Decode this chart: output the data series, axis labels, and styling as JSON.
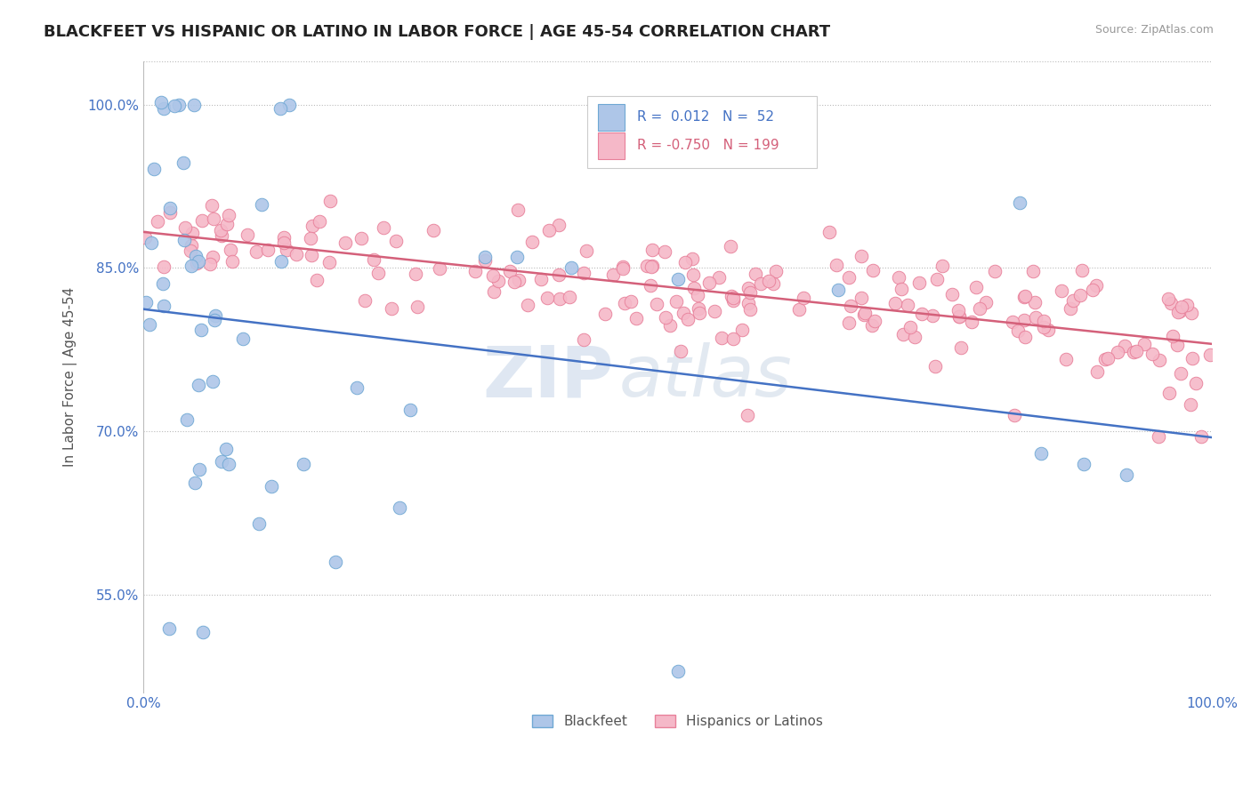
{
  "title": "BLACKFEET VS HISPANIC OR LATINO IN LABOR FORCE | AGE 45-54 CORRELATION CHART",
  "source_text": "Source: ZipAtlas.com",
  "ylabel": "In Labor Force | Age 45-54",
  "xlim": [
    0.0,
    1.0
  ],
  "ylim": [
    0.46,
    1.04
  ],
  "yticks": [
    0.55,
    0.7,
    0.85,
    1.0
  ],
  "ytick_labels": [
    "55.0%",
    "70.0%",
    "85.0%",
    "100.0%"
  ],
  "xticks": [
    0.0,
    0.1,
    0.2,
    0.3,
    0.4,
    0.5,
    0.6,
    0.7,
    0.8,
    0.9,
    1.0
  ],
  "xtick_labels": [
    "0.0%",
    "",
    "",
    "",
    "",
    "",
    "",
    "",
    "",
    "",
    "100.0%"
  ],
  "blue_R": 0.012,
  "blue_N": 52,
  "pink_R": -0.75,
  "pink_N": 199,
  "blue_color": "#aec6e8",
  "blue_edge": "#6fa8d4",
  "pink_color": "#f5b8c8",
  "pink_edge": "#e8809a",
  "blue_line_color": "#4472c4",
  "pink_line_color": "#d4607a",
  "legend_label_blue": "Blackfeet",
  "legend_label_pink": "Hispanics or Latinos",
  "watermark_zip": "ZIP",
  "watermark_atlas": "atlas",
  "background_color": "#ffffff",
  "grid_color": "#bbbbbb",
  "title_color": "#222222",
  "axis_label_color": "#555555",
  "tick_color": "#4472c4",
  "source_color": "#999999"
}
